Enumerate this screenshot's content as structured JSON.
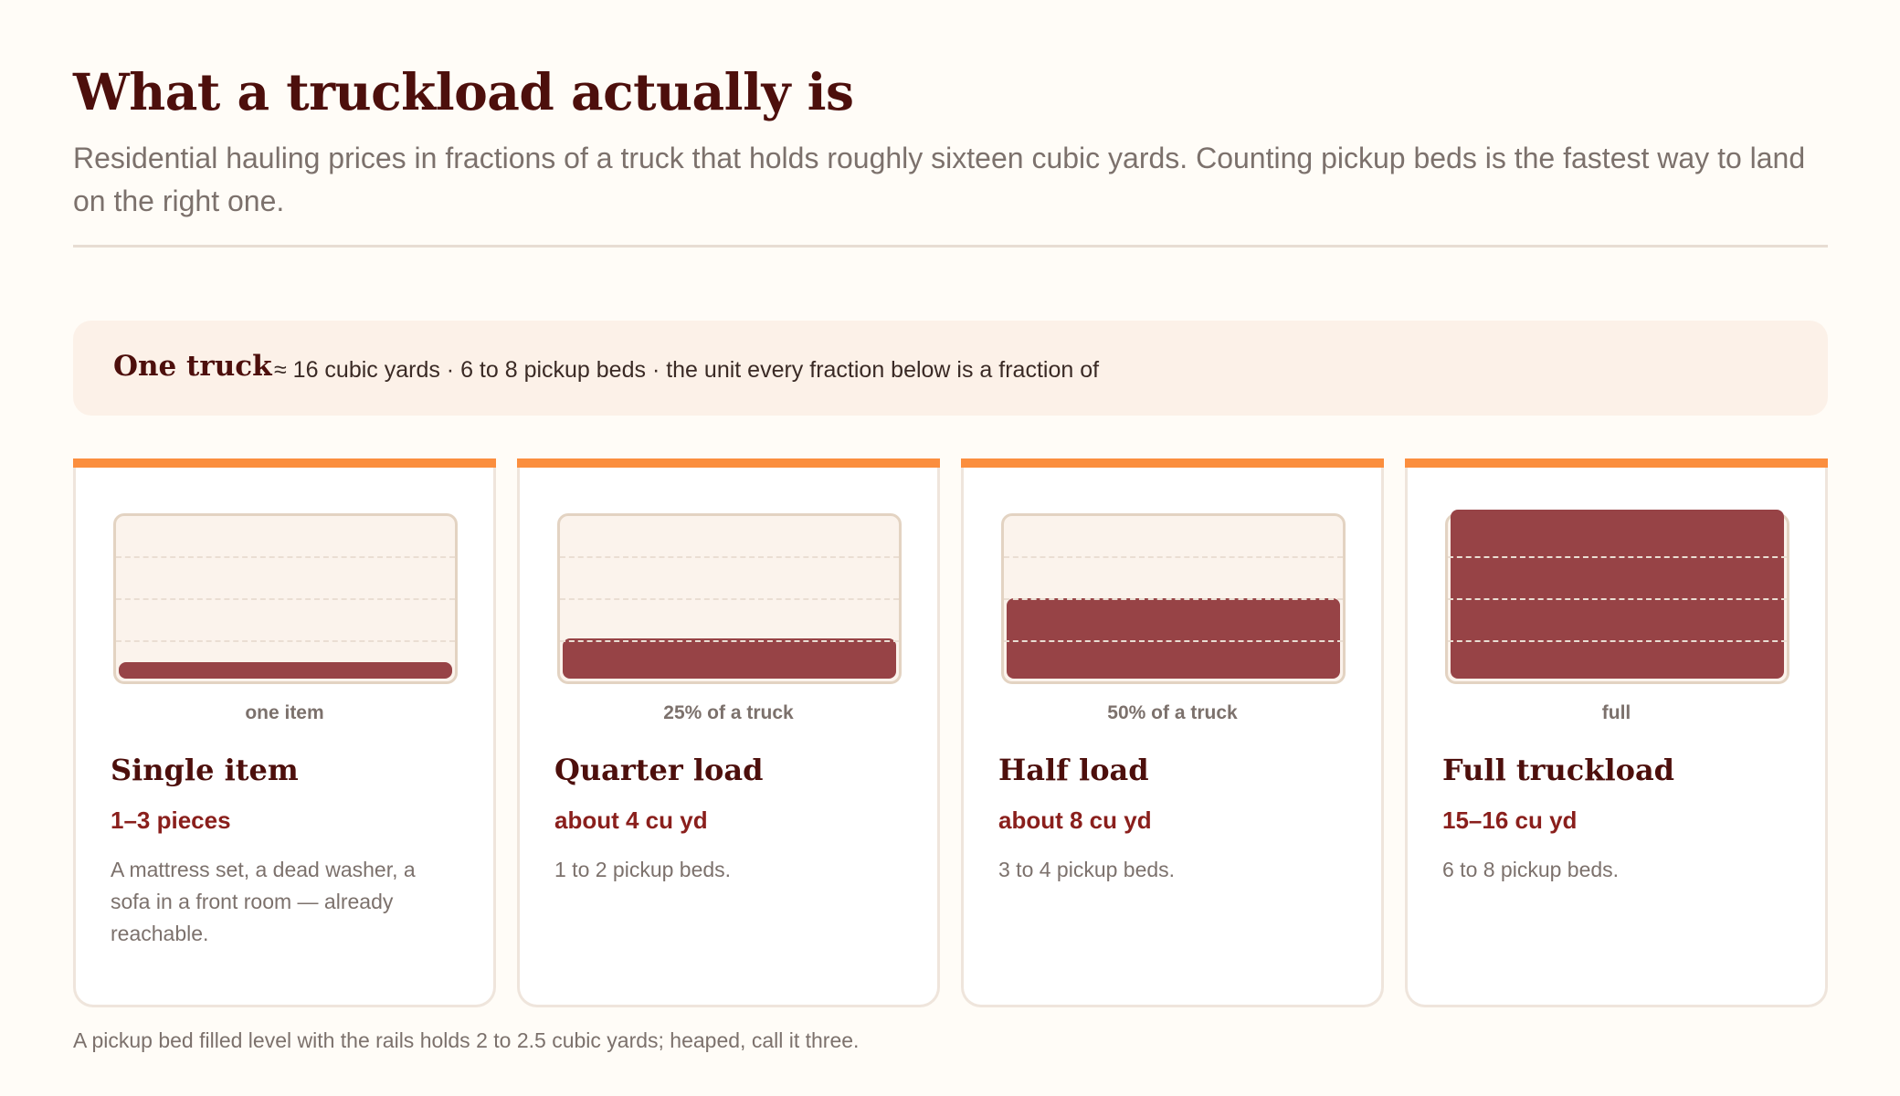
{
  "header": {
    "title": "What a truckload actually is",
    "subtitle": "Residential hauling prices in fractions of a truck that holds roughly sixteen cubic yards. Counting pickup beds is the fastest way to land on the right one."
  },
  "unit": {
    "title": "One truck",
    "description": "≈ 16 cubic yards · 6 to 8 pickup beds · the unit every fraction below is a fraction of"
  },
  "colors": {
    "accent": "#fb8e3e",
    "fill": "#974346",
    "heading": "#4d0f0c",
    "size_text": "#8a1f1c"
  },
  "cards": [
    {
      "fill_fraction": 0.1,
      "capacity_label": "one item",
      "title": "Single item",
      "size": "1–3 pieces",
      "description": "A mattress set, a dead washer, a sofa in a front room — already reachable."
    },
    {
      "fill_fraction": 0.25,
      "capacity_label": "25% of a truck",
      "title": "Quarter load",
      "size": "about 4 cu yd",
      "description": "1 to 2 pickup beds."
    },
    {
      "fill_fraction": 0.5,
      "capacity_label": "50% of a truck",
      "title": "Half load",
      "size": "about 8 cu yd",
      "description": "3 to 4 pickup beds."
    },
    {
      "fill_fraction": 1.0,
      "capacity_label": "full",
      "title": "Full truckload",
      "size": "15–16 cu yd",
      "description": "6 to 8 pickup beds."
    }
  ],
  "footnote": "A pickup bed filled level with the rails holds 2 to 2.5 cubic yards; heaped, call it three."
}
